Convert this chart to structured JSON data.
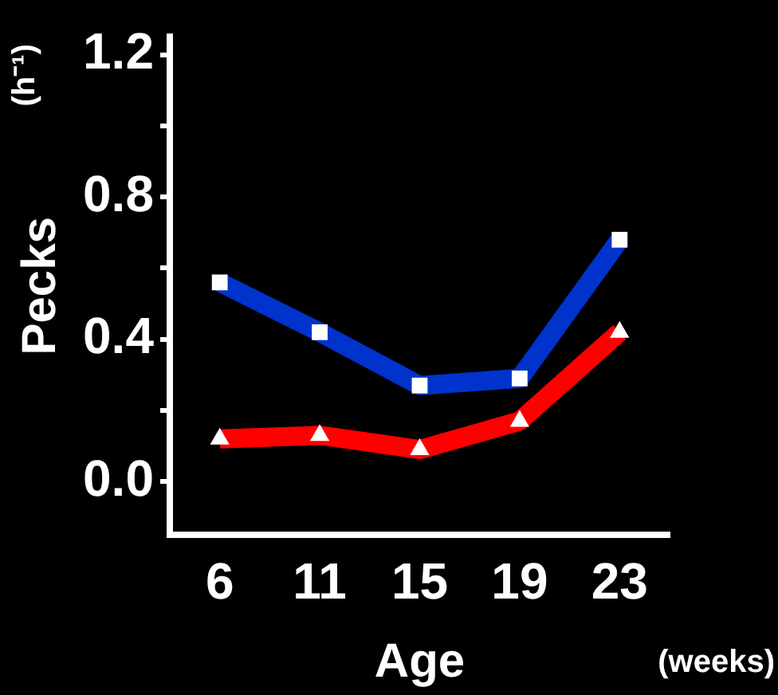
{
  "chart_data": {
    "type": "line",
    "xlabel": "Age",
    "ylabel": "Pecks",
    "annotations": [
      "(h⁻¹)",
      "(weeks)"
    ],
    "categories": [
      "6",
      "11",
      "15",
      "19",
      "23"
    ],
    "series": [
      {
        "color": "#0033cc",
        "marker": "square",
        "values": [
          0.56,
          0.42,
          0.27,
          0.29,
          0.68
        ]
      },
      {
        "color": "#ff0000",
        "marker": "triangle",
        "values": [
          0.12,
          0.13,
          0.09,
          0.17,
          0.42
        ]
      }
    ],
    "ylim": [
      -0.15,
      1.25
    ],
    "yticks": [
      {
        "value": 0,
        "label": "0.0"
      },
      {
        "value": 0.2,
        "label": null
      },
      0.4,
      {
        "value": 0.6,
        "label": null
      },
      0.8,
      {
        "value": 1.0,
        "label": null
      },
      1.2
    ],
    "grid": false,
    "legend": false
  }
}
